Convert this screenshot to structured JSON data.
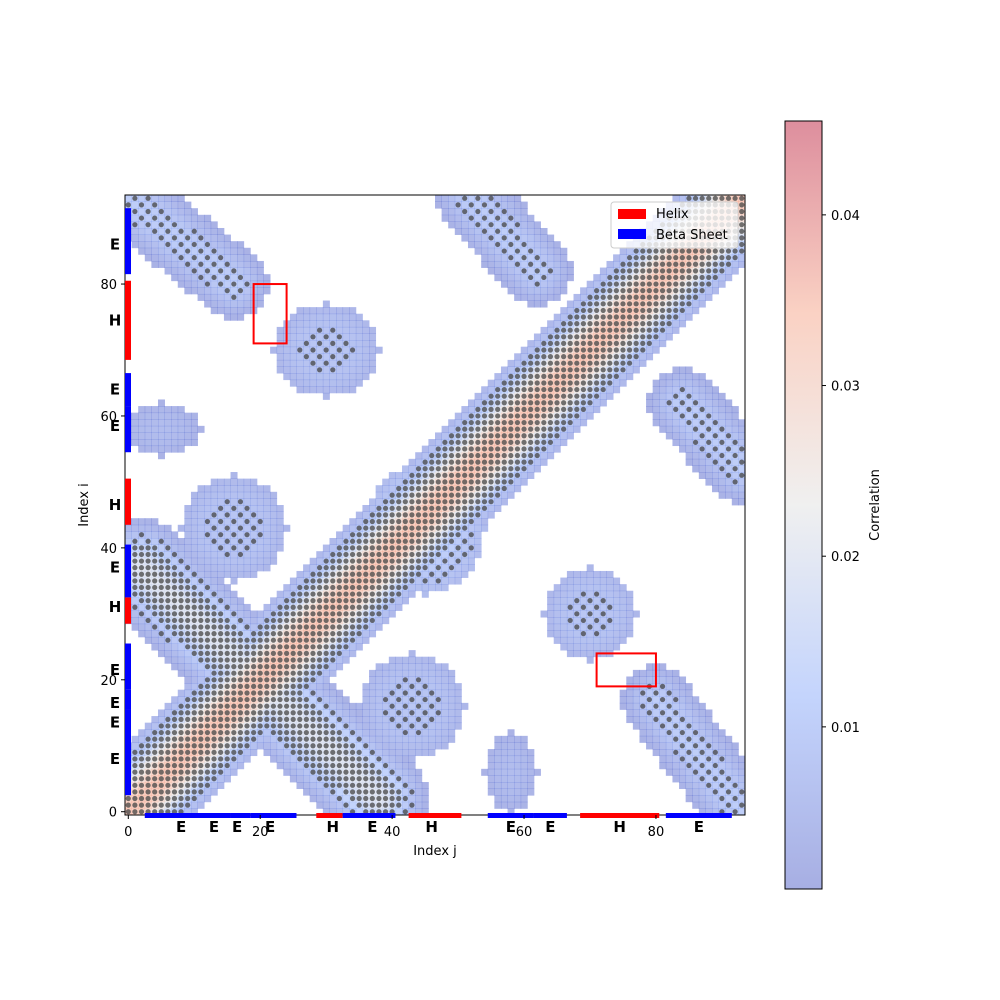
{
  "chart_data": {
    "type": "heatmap",
    "xlabel": "Index j",
    "ylabel": "Index i",
    "xlim": [
      -0.5,
      93.5
    ],
    "ylim": [
      -0.5,
      93.5
    ],
    "xticks": [
      0,
      20,
      40,
      60,
      80
    ],
    "yticks": [
      0,
      20,
      40,
      60,
      80
    ],
    "colorbar": {
      "label": "Correlation",
      "range": [
        0.0005,
        0.0455
      ],
      "ticks": [
        0.01,
        0.02,
        0.03,
        0.04
      ],
      "colormap": "coolwarm",
      "alpha": 0.45
    },
    "legend": {
      "placement": "upper right",
      "entries": [
        {
          "label": "Helix",
          "color": "#ff0000"
        },
        {
          "label": "Beta Sheet",
          "color": "#0000ff"
        }
      ]
    },
    "secondary_structure": {
      "segments": [
        {
          "type": "E",
          "start": 3,
          "end": 15
        },
        {
          "type": "E",
          "start": 16,
          "end": 18
        },
        {
          "type": "E",
          "start": 19,
          "end": 25
        },
        {
          "type": "H",
          "start": 29,
          "end": 32
        },
        {
          "type": "E",
          "start": 33,
          "end": 40
        },
        {
          "type": "H",
          "start": 43,
          "end": 50
        },
        {
          "type": "E",
          "start": 55,
          "end": 61
        },
        {
          "type": "E",
          "start": 62,
          "end": 66
        },
        {
          "type": "H",
          "start": 69,
          "end": 80
        },
        {
          "type": "E",
          "start": 82,
          "end": 91
        }
      ],
      "x_labels": [
        {
          "text": "E",
          "pos": 8
        },
        {
          "text": "E",
          "pos": 13
        },
        {
          "text": "E",
          "pos": 16.5
        },
        {
          "text": "E",
          "pos": 21.5
        },
        {
          "text": "H",
          "pos": 31
        },
        {
          "text": "E",
          "pos": 37
        },
        {
          "text": "H",
          "pos": 46
        },
        {
          "text": "E",
          "pos": 58
        },
        {
          "text": "E",
          "pos": 64
        },
        {
          "text": "H",
          "pos": 74.5
        },
        {
          "text": "E",
          "pos": 86.5
        }
      ],
      "y_segments": [
        {
          "type": "E",
          "start": 3,
          "end": 15
        },
        {
          "type": "E",
          "start": 16,
          "end": 18
        },
        {
          "type": "E",
          "start": 19,
          "end": 25
        },
        {
          "type": "H",
          "start": 29,
          "end": 32
        },
        {
          "type": "E",
          "start": 33,
          "end": 40
        },
        {
          "type": "H",
          "start": 44,
          "end": 50
        },
        {
          "type": "E",
          "start": 55,
          "end": 61
        },
        {
          "type": "E",
          "start": 62,
          "end": 66
        },
        {
          "type": "H",
          "start": 69,
          "end": 80
        },
        {
          "type": "E",
          "start": 82,
          "end": 91
        }
      ],
      "y_labels": [
        {
          "text": "E",
          "pos": 8
        },
        {
          "text": "E",
          "pos": 13.5
        },
        {
          "text": "E",
          "pos": 16.5
        },
        {
          "text": "E",
          "pos": 21.5
        },
        {
          "text": "H",
          "pos": 31
        },
        {
          "text": "E",
          "pos": 37
        },
        {
          "text": "H",
          "pos": 46.5
        },
        {
          "text": "E",
          "pos": 58.5
        },
        {
          "text": "E",
          "pos": 64
        },
        {
          "text": "H",
          "pos": 74.5
        },
        {
          "text": "E",
          "pos": 86
        }
      ]
    },
    "highlight_boxes": [
      {
        "x": [
          19,
          24
        ],
        "y": [
          71,
          80
        ]
      },
      {
        "x": [
          71,
          80
        ],
        "y": [
          19,
          24
        ]
      }
    ],
    "regions": [
      {
        "name": "main-diagonal",
        "shape": "band",
        "from": [
          0,
          0
        ],
        "to": [
          93,
          93
        ],
        "width": 7.5,
        "peak": 0.035
      },
      {
        "name": "cross-diagonal",
        "shape": "band",
        "from": [
          2,
          37
        ],
        "to": [
          38,
          2
        ],
        "width": 7.5,
        "peak": 0.02
      },
      {
        "name": "upper-left-strand",
        "shape": "band",
        "from": [
          0,
          93
        ],
        "to": [
          16,
          80
        ],
        "width": 6,
        "peak": 0.01
      },
      {
        "name": "lower-right-strand",
        "shape": "band",
        "from": [
          80,
          17
        ],
        "to": [
          93,
          0
        ],
        "width": 6,
        "peak": 0.01
      },
      {
        "name": "upper-middle-strand",
        "shape": "band",
        "from": [
          52,
          93
        ],
        "to": [
          62,
          82
        ],
        "width": 6,
        "peak": 0.01
      },
      {
        "name": "right-middle-strand",
        "shape": "band",
        "from": [
          84,
          62
        ],
        "to": [
          93,
          52
        ],
        "width": 6,
        "peak": 0.01
      },
      {
        "name": "blob-upper",
        "shape": "blob",
        "center": [
          30,
          70
        ],
        "radius": [
          8,
          7
        ],
        "peak": 0.008
      },
      {
        "name": "blob-left-mid",
        "shape": "blob",
        "center": [
          16,
          43
        ],
        "radius": [
          8,
          8
        ],
        "peak": 0.008
      },
      {
        "name": "blob-center-mid",
        "shape": "blob",
        "center": [
          45,
          43
        ],
        "radius": [
          9,
          10
        ],
        "peak": 0.012
      },
      {
        "name": "blob-lower-mid",
        "shape": "blob",
        "center": [
          43,
          16
        ],
        "radius": [
          8,
          8
        ],
        "peak": 0.008
      },
      {
        "name": "blob-right-mid",
        "shape": "blob",
        "center": [
          70,
          30
        ],
        "radius": [
          7,
          7
        ],
        "peak": 0.008
      },
      {
        "name": "blob-left-edge",
        "shape": "blob",
        "center": [
          5,
          58
        ],
        "radius": [
          6,
          4
        ],
        "peak": 0.005
      },
      {
        "name": "blob-bottom-edge",
        "shape": "blob",
        "center": [
          58,
          6
        ],
        "radius": [
          4,
          6
        ],
        "peak": 0.005
      }
    ],
    "contacts_note": "dark grey points mark residue contacts along the high-correlation bands"
  }
}
